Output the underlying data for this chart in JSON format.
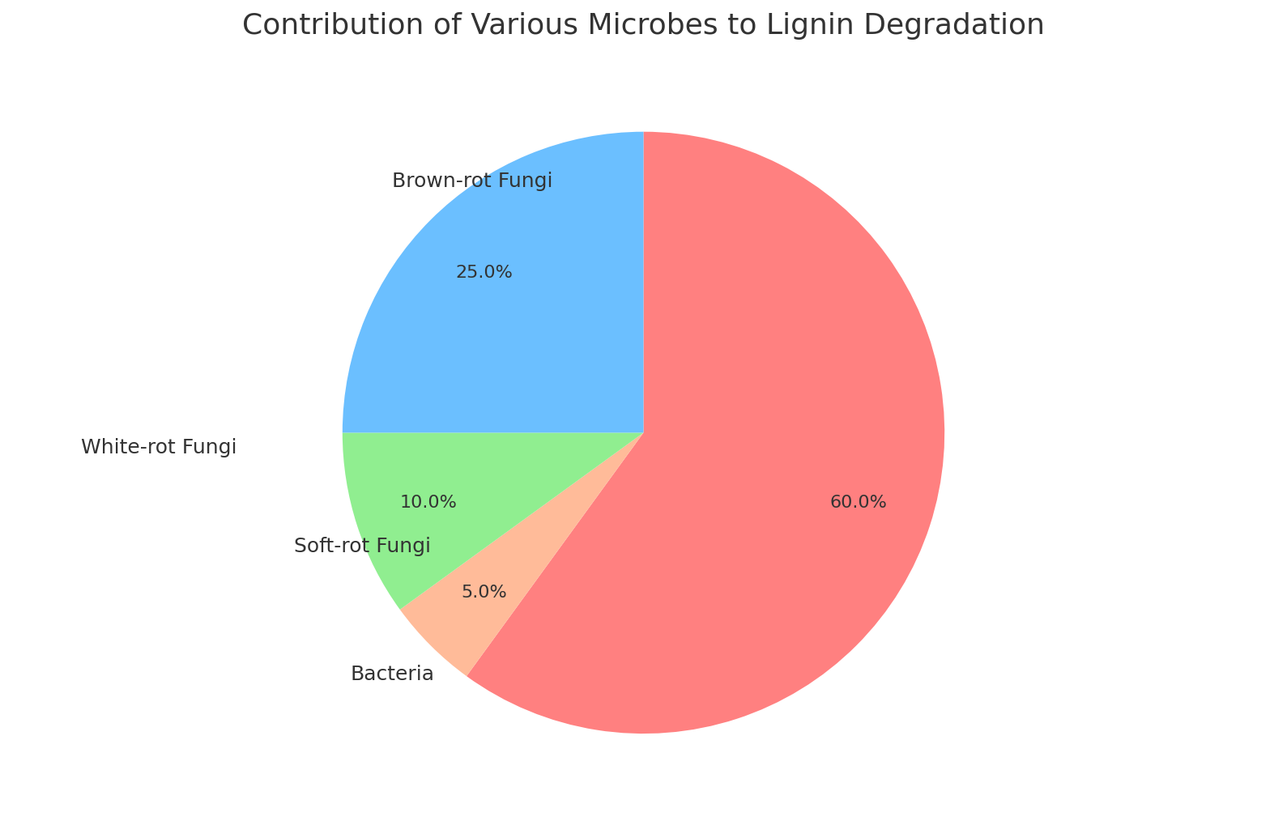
{
  "title": "Contribution of Various Microbes to Lignin Degradation",
  "title_fontsize": 26,
  "labels": [
    "White-rot Fungi",
    "Bacteria",
    "Soft-rot Fungi",
    "Brown-rot Fungi"
  ],
  "sizes": [
    60,
    5,
    10,
    25
  ],
  "colors": [
    "#FF8080",
    "#FFBB99",
    "#90EE90",
    "#6BBFFF"
  ],
  "autopct_fontsize": 16,
  "label_fontsize": 18,
  "startangle": 90,
  "background_color": "#FFFFFF",
  "pct_distance": 0.75,
  "label_color": "#333333",
  "title_color": "#333333"
}
